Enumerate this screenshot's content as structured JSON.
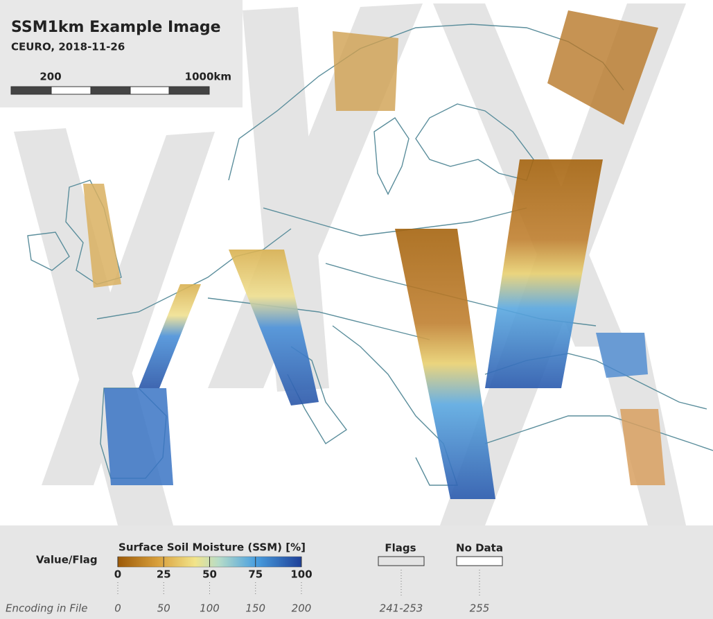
{
  "header": {
    "title": "SSM1km Example Image",
    "subtitle": "CEURO, 2018-11-26"
  },
  "scale_bar": {
    "labels": [
      "200",
      "1000km"
    ]
  },
  "legend": {
    "row_label": "Value/Flag",
    "encoding_label": "Encoding in File",
    "colorbar": {
      "title": "Surface Soil Moisture (SSM) [%]",
      "ticks": [
        0,
        25,
        50,
        75,
        100
      ],
      "encodings": [
        0,
        50,
        100,
        150,
        200
      ]
    },
    "flags": {
      "label": "Flags",
      "encoding": "241-253"
    },
    "no_data": {
      "label": "No Data",
      "encoding": "255"
    }
  }
}
